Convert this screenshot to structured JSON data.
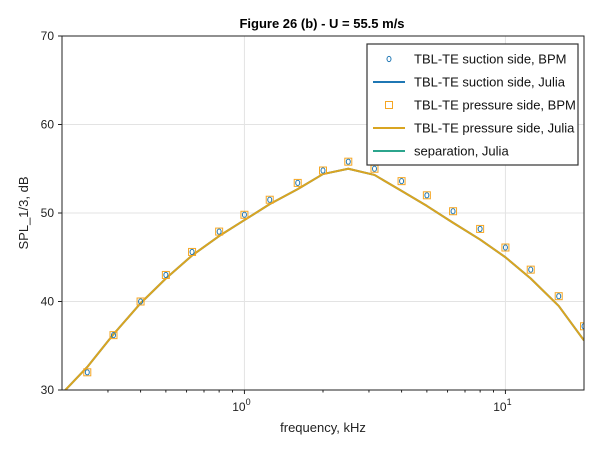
{
  "chart_data": {
    "type": "line",
    "title": "Figure 26 (b) - U = 55.5 m/s",
    "xlabel": "frequency, kHz",
    "ylabel": "SPL_1/3, dB",
    "xscale": "log",
    "xlim": [
      0.2,
      20
    ],
    "ylim": [
      30,
      70
    ],
    "xticks": [
      {
        "value": 1,
        "label": "10",
        "exp": "0"
      },
      {
        "value": 10,
        "label": "10",
        "exp": "1"
      }
    ],
    "yticks": [
      {
        "value": 30,
        "label": "30"
      },
      {
        "value": 40,
        "label": "40"
      },
      {
        "value": 50,
        "label": "50"
      },
      {
        "value": 60,
        "label": "60"
      },
      {
        "value": 70,
        "label": "70"
      }
    ],
    "grid": true,
    "legend_position": "top-right",
    "series": [
      {
        "name": "TBL-TE suction side, BPM",
        "kind": "marker-circle",
        "color": "#1f77b4",
        "x": [
          0.25,
          0.315,
          0.4,
          0.5,
          0.63,
          0.8,
          1.0,
          1.25,
          1.6,
          2.0,
          2.5,
          3.15,
          4.0,
          5.0,
          6.3,
          8.0,
          10.0,
          12.5,
          16.0,
          20.0
        ],
        "y": [
          32.0,
          36.2,
          40.0,
          43.0,
          45.6,
          47.9,
          49.8,
          51.5,
          53.4,
          54.8,
          55.8,
          55.0,
          53.6,
          52.0,
          50.2,
          48.2,
          46.1,
          43.6,
          40.6,
          37.2
        ]
      },
      {
        "name": "TBL-TE suction side, Julia",
        "kind": "line",
        "color": "#1f77b4",
        "x": [
          0.2,
          0.25,
          0.315,
          0.4,
          0.5,
          0.63,
          0.8,
          1.0,
          1.25,
          1.6,
          2.0,
          2.5,
          3.15,
          4.0,
          5.0,
          6.3,
          8.0,
          10.0,
          12.5,
          16.0,
          20.0
        ],
        "y": [
          29.6,
          32.6,
          36.3,
          39.8,
          42.6,
          45.2,
          47.4,
          49.2,
          51.0,
          52.7,
          54.4,
          55.0,
          54.3,
          52.5,
          50.8,
          48.9,
          47.0,
          45.0,
          42.6,
          39.5,
          35.6
        ]
      },
      {
        "name": "TBL-TE pressure side, BPM",
        "kind": "marker-square",
        "color": "#f5a623",
        "x": [
          0.25,
          0.315,
          0.4,
          0.5,
          0.63,
          0.8,
          1.0,
          1.25,
          1.6,
          2.0,
          2.5,
          3.15,
          4.0,
          5.0,
          6.3,
          8.0,
          10.0,
          12.5,
          16.0,
          20.0
        ],
        "y": [
          32.0,
          36.2,
          40.0,
          43.0,
          45.6,
          47.9,
          49.8,
          51.5,
          53.4,
          54.8,
          55.8,
          55.0,
          53.6,
          52.0,
          50.2,
          48.2,
          46.1,
          43.6,
          40.6,
          37.2
        ]
      },
      {
        "name": "TBL-TE pressure side, Julia",
        "kind": "line",
        "color": "#d9a521",
        "x": [
          0.2,
          0.25,
          0.315,
          0.4,
          0.5,
          0.63,
          0.8,
          1.0,
          1.25,
          1.6,
          2.0,
          2.5,
          3.15,
          4.0,
          5.0,
          6.3,
          8.0,
          10.0,
          12.5,
          16.0,
          20.0
        ],
        "y": [
          29.6,
          32.6,
          36.3,
          39.8,
          42.6,
          45.2,
          47.4,
          49.2,
          51.0,
          52.7,
          54.4,
          55.0,
          54.3,
          52.5,
          50.8,
          48.9,
          47.0,
          45.0,
          42.6,
          39.5,
          35.6
        ]
      },
      {
        "name": "separation, Julia",
        "kind": "line",
        "color": "#2ca58d",
        "x": [],
        "y": []
      }
    ]
  }
}
